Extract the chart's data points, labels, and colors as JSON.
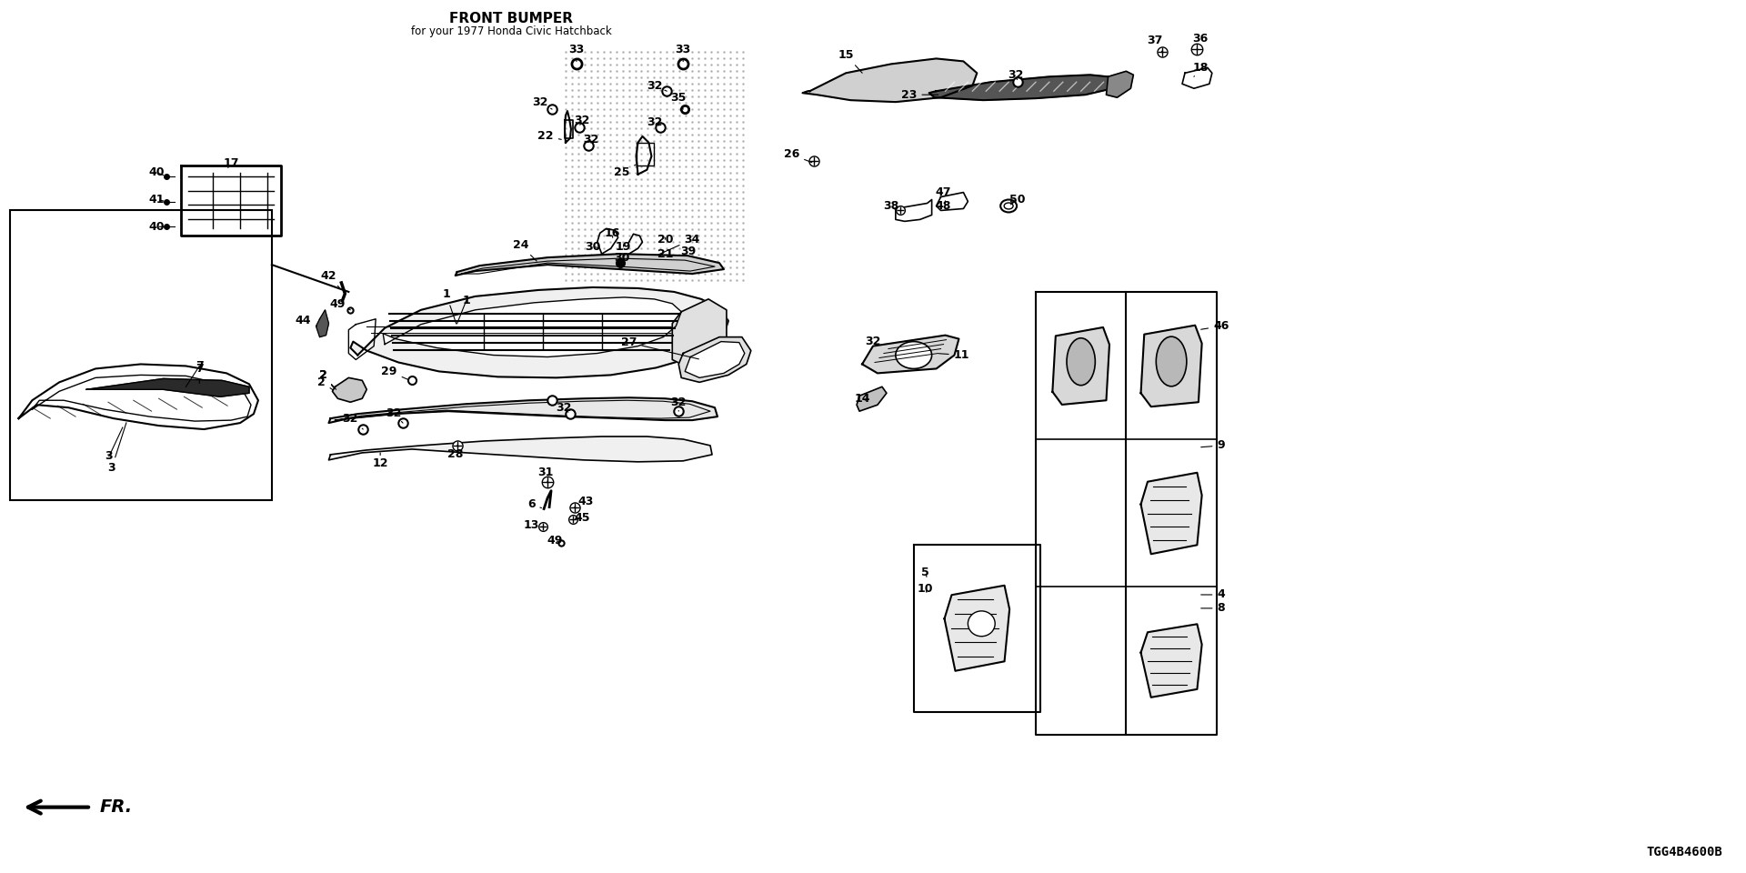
{
  "title": "FRONT BUMPER",
  "subtitle": "for your 1977 Honda Civic Hatchback",
  "diagram_code": "TGG4B4600B",
  "bg": "#ffffff",
  "fig_w": 19.2,
  "fig_h": 9.6,
  "label_fontsize": 9.0,
  "title_fontsize": 11.0
}
